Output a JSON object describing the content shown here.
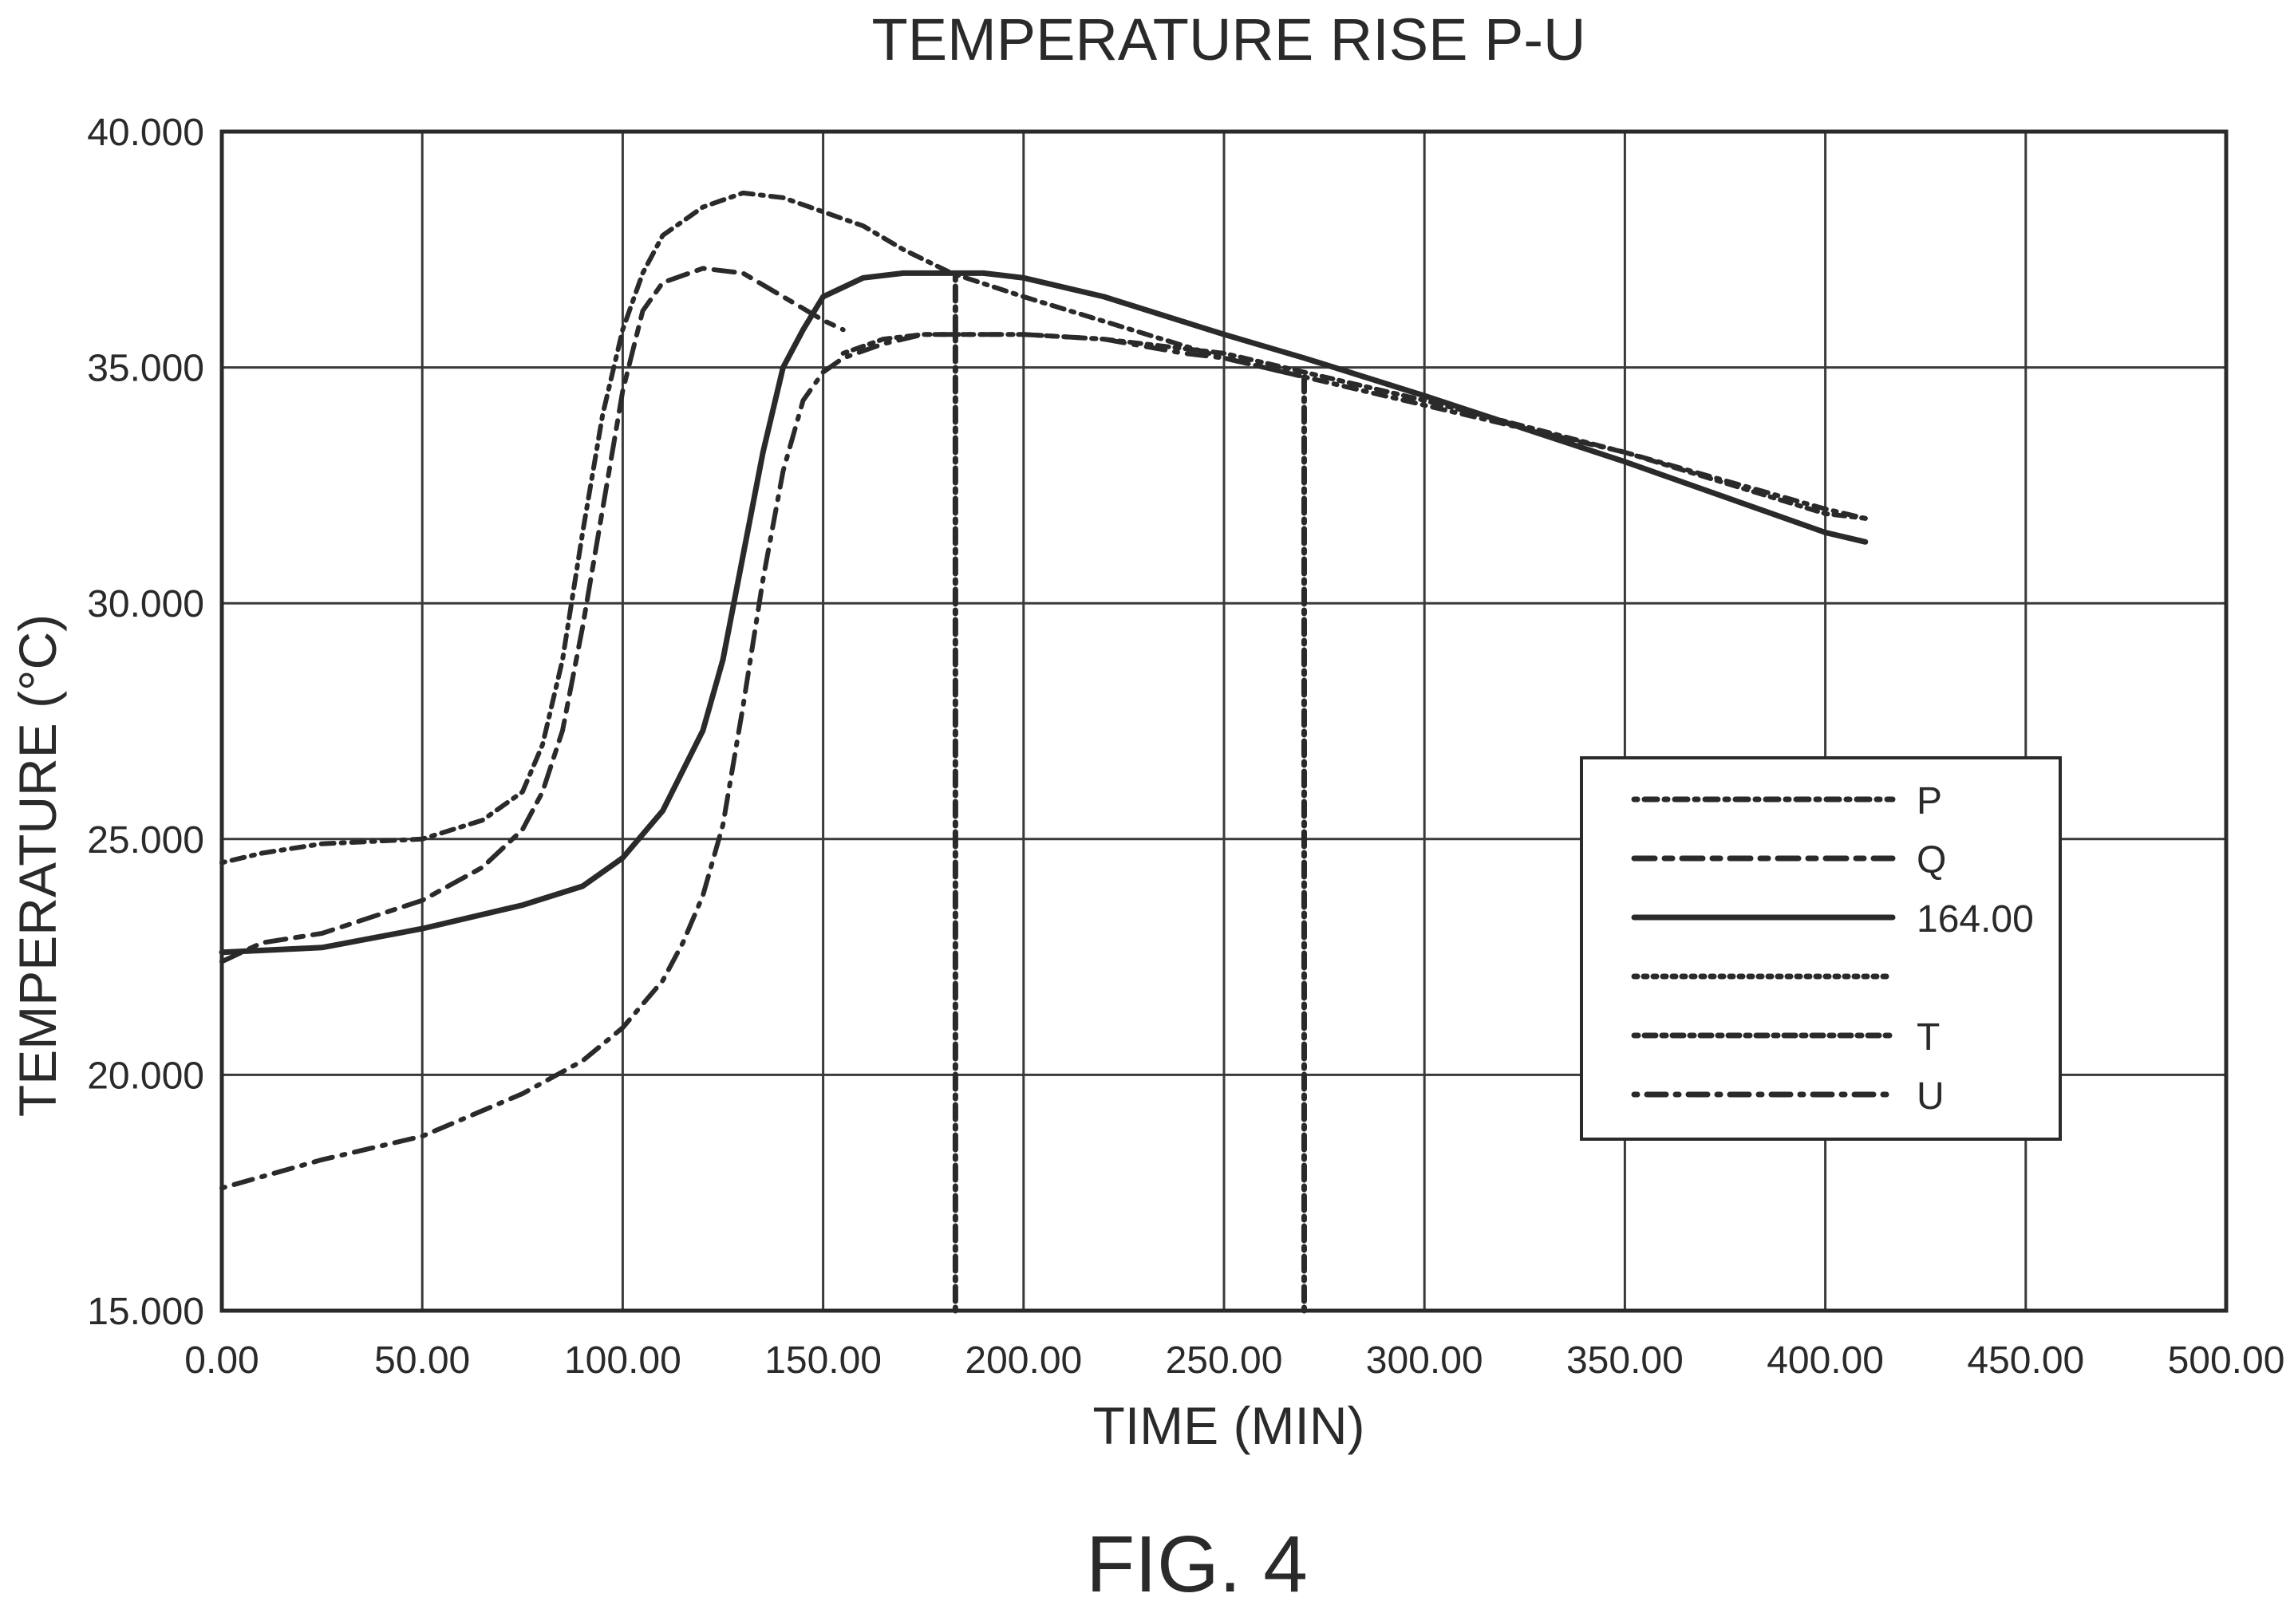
{
  "chart_data": {
    "type": "line",
    "title": "TEMPERATURE RISE P-U",
    "xlabel": "TIME (MIN)",
    "ylabel": "TEMPERATURE (°C)",
    "figure_label": "FIG. 4",
    "xlim": [
      0,
      500
    ],
    "ylim": [
      15,
      40
    ],
    "x_ticks": [
      "0.00",
      "50.00",
      "100.00",
      "150.00",
      "200.00",
      "250.00",
      "300.00",
      "350.00",
      "400.00",
      "450.00",
      "500.00"
    ],
    "y_ticks": [
      "15.000",
      "20.000",
      "25.000",
      "30.000",
      "35.000",
      "40.000"
    ],
    "grid": true,
    "legend_position": "right",
    "legend": [
      {
        "label": "P",
        "dash": "4 9 16 9 4 9 16 9"
      },
      {
        "label": "Q",
        "dash": "26 12 10 12"
      },
      {
        "label": "164.00",
        "dash": ""
      },
      {
        "label": "",
        "dash": "4 8"
      },
      {
        "label": "T",
        "dash": "5 8 14 8"
      },
      {
        "label": "U",
        "dash": "4 12 24 12"
      }
    ],
    "series": [
      {
        "label": "P",
        "dash": "4 9 16 9 4 9 16 9",
        "width": 6,
        "x": [
          0,
          10,
          25,
          50,
          65,
          75,
          80,
          85,
          90,
          95,
          100,
          105,
          110,
          120,
          130,
          140,
          150,
          160,
          170,
          182,
          200,
          250,
          300,
          350,
          400,
          410
        ],
        "y": [
          24.5,
          24.7,
          24.9,
          25.0,
          25.4,
          26.0,
          27.0,
          28.8,
          31.5,
          34.0,
          35.8,
          37.0,
          37.8,
          38.4,
          38.7,
          38.6,
          38.3,
          38.0,
          37.5,
          37.0,
          36.5,
          35.2,
          34.2,
          33.2,
          32.0,
          31.8
        ]
      },
      {
        "label": "Q",
        "dash": "26 12 10 12",
        "width": 6,
        "x": [
          0,
          10,
          25,
          50,
          65,
          75,
          80,
          85,
          90,
          95,
          100,
          105,
          110,
          120,
          130,
          140,
          150,
          155
        ],
        "y": [
          22.4,
          22.8,
          23.0,
          23.7,
          24.4,
          25.2,
          26.0,
          27.3,
          29.5,
          32.0,
          34.5,
          36.2,
          36.8,
          37.1,
          37.0,
          36.5,
          36.0,
          35.8
        ]
      },
      {
        "label": "164.00",
        "dash": "",
        "width": 7,
        "x": [
          0,
          25,
          50,
          75,
          90,
          100,
          110,
          120,
          125,
          130,
          135,
          140,
          145,
          150,
          160,
          170,
          180,
          190,
          200,
          220,
          250,
          270,
          300,
          350,
          400,
          410
        ],
        "y": [
          22.6,
          22.7,
          23.1,
          23.6,
          24.0,
          24.6,
          25.6,
          27.3,
          28.8,
          31.0,
          33.2,
          35.0,
          35.8,
          36.5,
          36.9,
          37.0,
          37.0,
          37.0,
          36.9,
          36.5,
          35.7,
          35.2,
          34.4,
          33.0,
          31.5,
          31.3
        ]
      },
      {
        "label": "T",
        "dash": "5 8 14 8",
        "width": 6,
        "x": [
          155,
          165,
          175,
          185,
          200,
          220,
          250,
          270,
          300,
          350,
          400,
          410
        ],
        "y": [
          35.3,
          35.6,
          35.7,
          35.7,
          35.7,
          35.6,
          35.3,
          34.9,
          34.3,
          33.2,
          31.9,
          31.8
        ]
      },
      {
        "label": "U",
        "dash": "4 12 24 12",
        "width": 6,
        "x": [
          0,
          25,
          50,
          75,
          90,
          100,
          110,
          115,
          120,
          125,
          130,
          135,
          140,
          145,
          150,
          155,
          165,
          175,
          185,
          200,
          220,
          240,
          250,
          260,
          270
        ],
        "y": [
          17.6,
          18.2,
          18.7,
          19.6,
          20.3,
          21.0,
          22.0,
          22.8,
          23.8,
          25.3,
          27.8,
          30.5,
          32.8,
          34.3,
          34.9,
          35.2,
          35.5,
          35.7,
          35.7,
          35.7,
          35.6,
          35.3,
          35.2,
          35.0,
          34.8
        ]
      }
    ],
    "vertical_lines": [
      {
        "x": 183,
        "y0": 15,
        "y1": 37.0,
        "dash": "4 8 18 8"
      },
      {
        "x": 270,
        "y0": 15,
        "y1": 34.9,
        "dash": "4 8 18 8"
      }
    ]
  }
}
